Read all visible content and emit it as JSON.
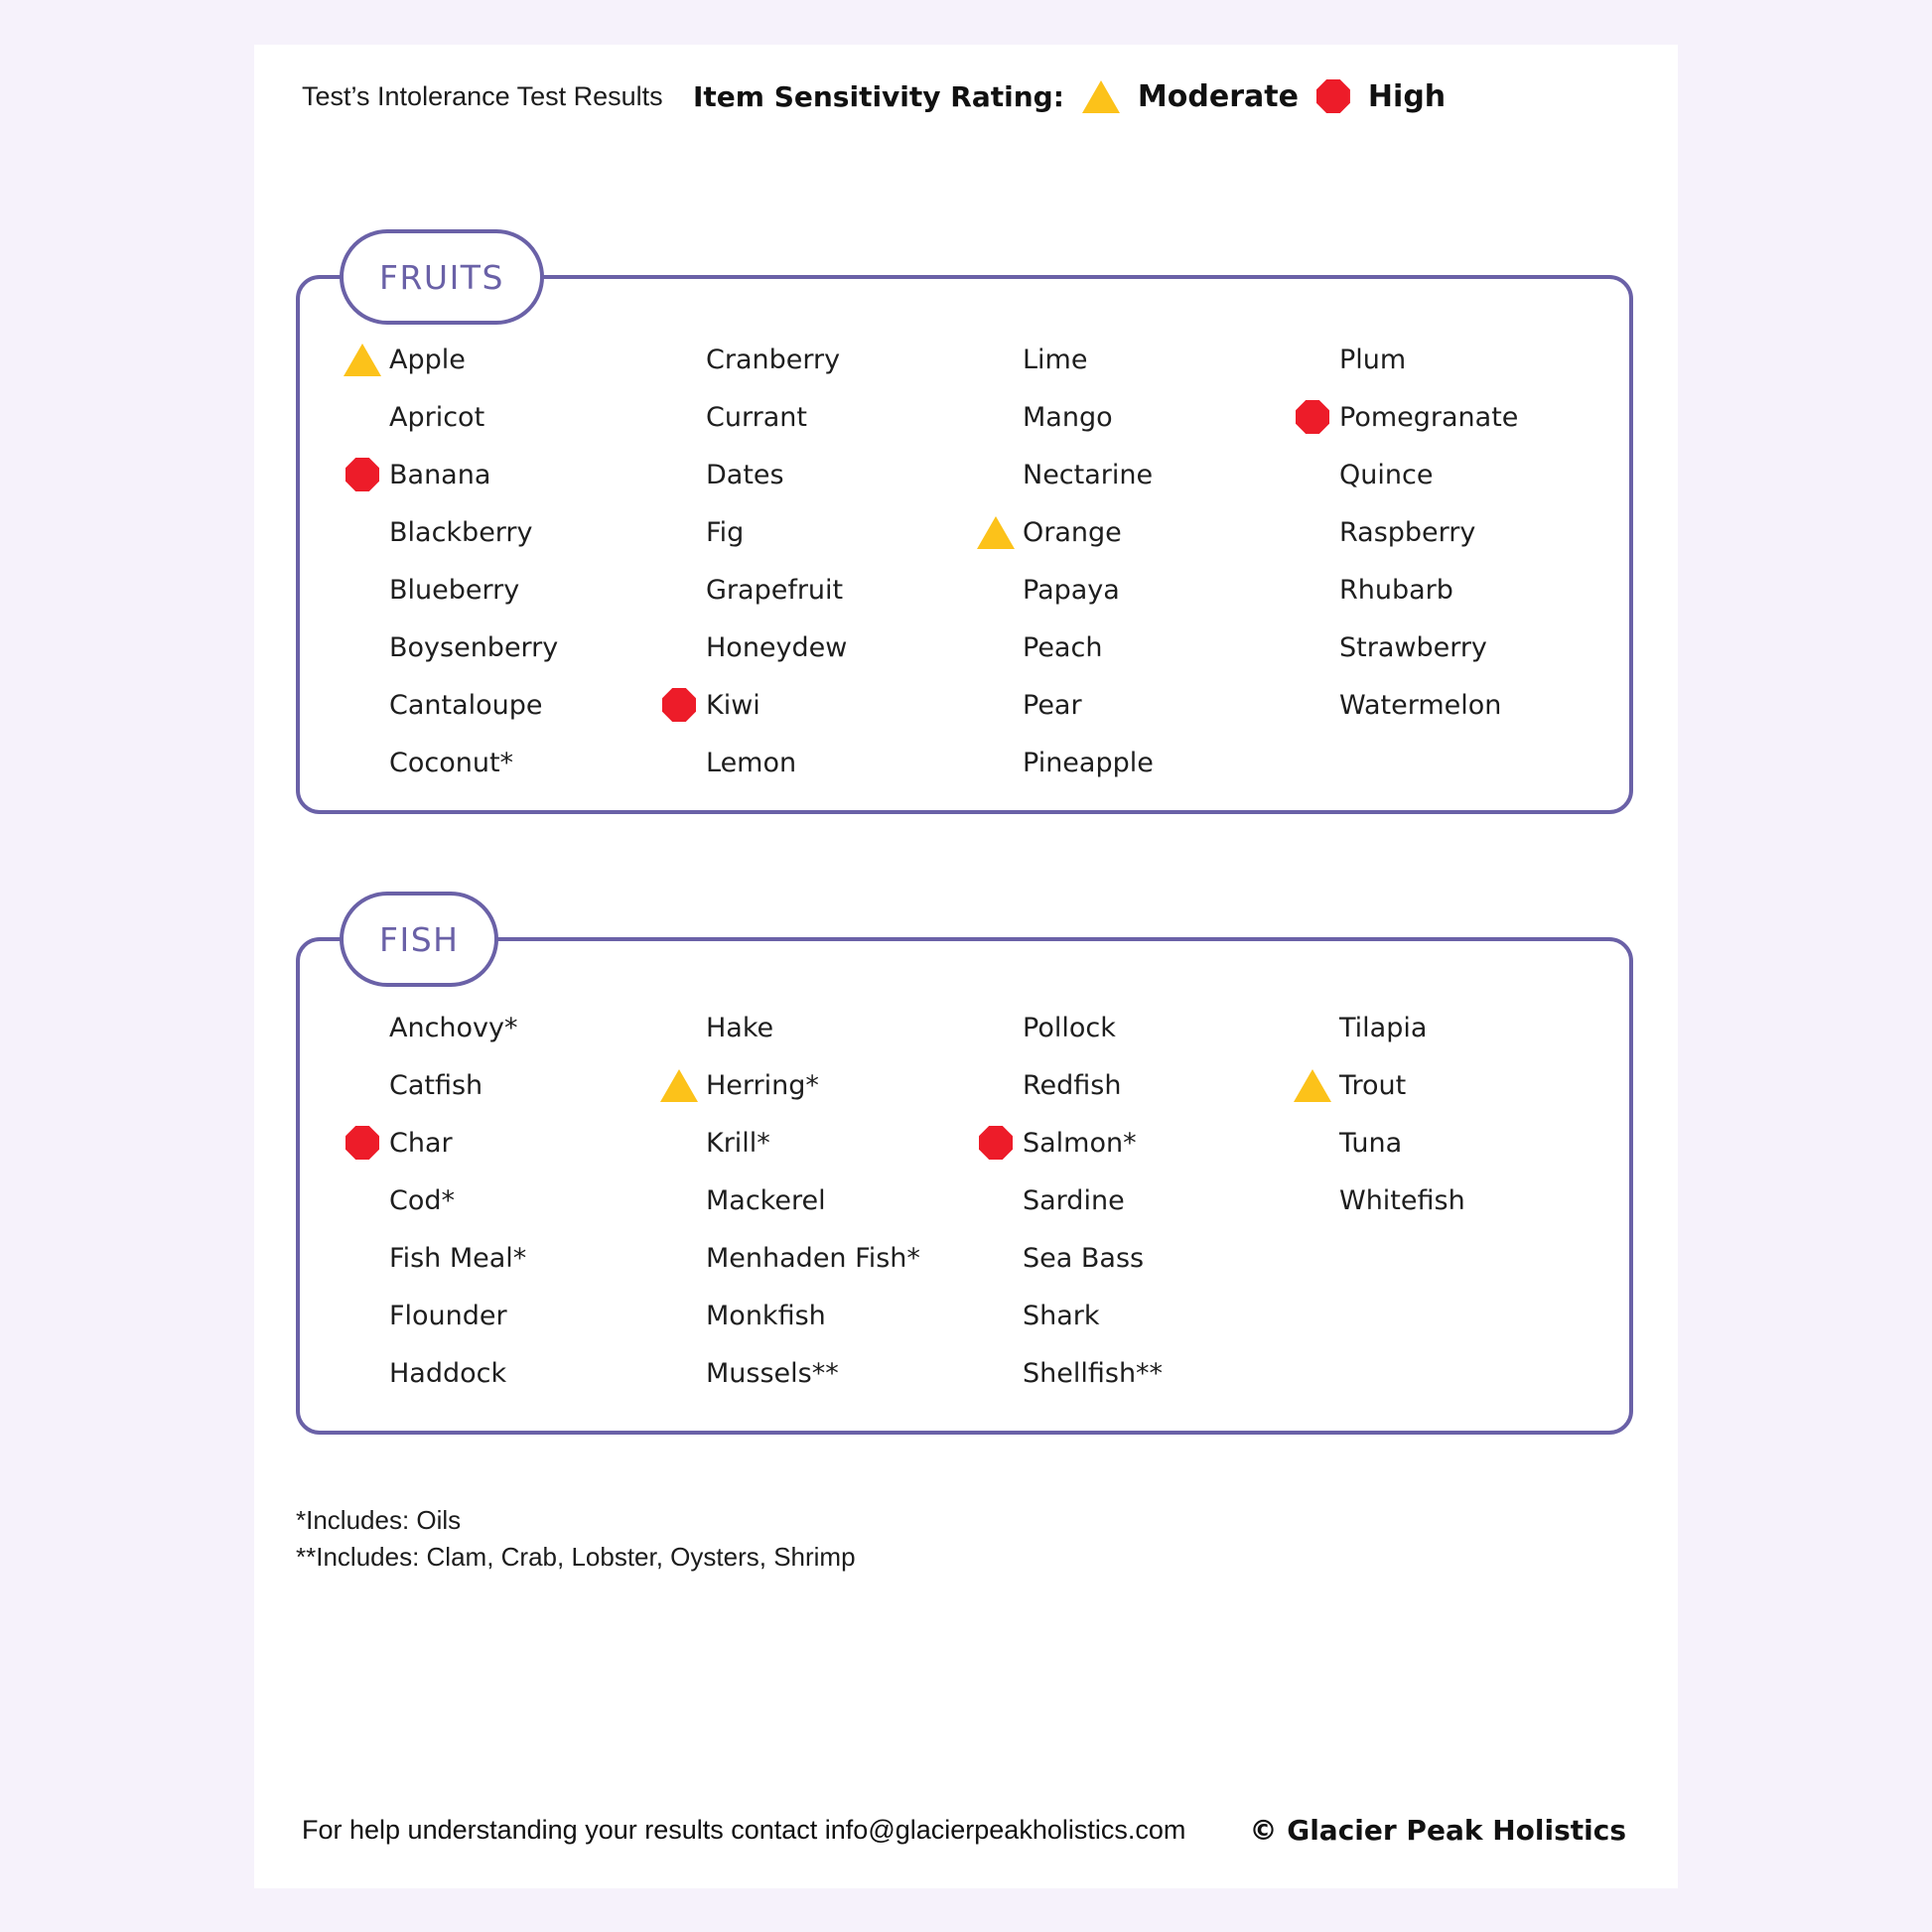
{
  "page": {
    "title": "Test’s Intolerance Test Results",
    "legend": {
      "label": "Item Sensitivity Rating:",
      "moderate_label": "Moderate",
      "high_label": "High"
    },
    "footnotes": [
      "*Includes: Oils",
      "**Includes: Clam, Crab, Lobster, Oysters, Shrimp"
    ],
    "footer": {
      "contact": "For help understanding your results contact info@glacierpeakholistics.com",
      "copyright": "© Glacier Peak Holistics"
    }
  },
  "colors": {
    "accent_purple": "#6a61a7",
    "moderate_yellow": "#fcc21a",
    "high_red": "#ed1c29",
    "canvas_background": "#f6f2fb",
    "page_background": "#ffffff",
    "text": "#1e1e1e"
  },
  "categories": [
    {
      "name": "FRUITS",
      "rows": 8,
      "items": [
        {
          "label": "Apple",
          "rating": "moderate"
        },
        {
          "label": "Apricot",
          "rating": "none"
        },
        {
          "label": "Banana",
          "rating": "high"
        },
        {
          "label": "Blackberry",
          "rating": "none"
        },
        {
          "label": "Blueberry",
          "rating": "none"
        },
        {
          "label": "Boysenberry",
          "rating": "none"
        },
        {
          "label": "Cantaloupe",
          "rating": "none"
        },
        {
          "label": "Coconut*",
          "rating": "none"
        },
        {
          "label": "Cranberry",
          "rating": "none"
        },
        {
          "label": "Currant",
          "rating": "none"
        },
        {
          "label": "Dates",
          "rating": "none"
        },
        {
          "label": "Fig",
          "rating": "none"
        },
        {
          "label": "Grapefruit",
          "rating": "none"
        },
        {
          "label": "Honeydew",
          "rating": "none"
        },
        {
          "label": "Kiwi",
          "rating": "high"
        },
        {
          "label": "Lemon",
          "rating": "none"
        },
        {
          "label": "Lime",
          "rating": "none"
        },
        {
          "label": "Mango",
          "rating": "none"
        },
        {
          "label": "Nectarine",
          "rating": "none"
        },
        {
          "label": "Orange",
          "rating": "moderate"
        },
        {
          "label": "Papaya",
          "rating": "none"
        },
        {
          "label": "Peach",
          "rating": "none"
        },
        {
          "label": "Pear",
          "rating": "none"
        },
        {
          "label": "Pineapple",
          "rating": "none"
        },
        {
          "label": "Plum",
          "rating": "none"
        },
        {
          "label": "Pomegranate",
          "rating": "high"
        },
        {
          "label": "Quince",
          "rating": "none"
        },
        {
          "label": "Raspberry",
          "rating": "none"
        },
        {
          "label": "Rhubarb",
          "rating": "none"
        },
        {
          "label": "Strawberry",
          "rating": "none"
        },
        {
          "label": "Watermelon",
          "rating": "none"
        }
      ]
    },
    {
      "name": "FISH",
      "rows": 7,
      "items": [
        {
          "label": "Anchovy*",
          "rating": "none"
        },
        {
          "label": "Catfish",
          "rating": "none"
        },
        {
          "label": "Char",
          "rating": "high"
        },
        {
          "label": "Cod*",
          "rating": "none"
        },
        {
          "label": "Fish Meal*",
          "rating": "none"
        },
        {
          "label": "Flounder",
          "rating": "none"
        },
        {
          "label": "Haddock",
          "rating": "none"
        },
        {
          "label": "Hake",
          "rating": "none"
        },
        {
          "label": "Herring*",
          "rating": "moderate"
        },
        {
          "label": "Krill*",
          "rating": "none"
        },
        {
          "label": "Mackerel",
          "rating": "none"
        },
        {
          "label": "Menhaden Fish*",
          "rating": "none"
        },
        {
          "label": "Monkfish",
          "rating": "none"
        },
        {
          "label": "Mussels**",
          "rating": "none"
        },
        {
          "label": "Pollock",
          "rating": "none"
        },
        {
          "label": "Redfish",
          "rating": "none"
        },
        {
          "label": "Salmon*",
          "rating": "high"
        },
        {
          "label": "Sardine",
          "rating": "none"
        },
        {
          "label": "Sea Bass",
          "rating": "none"
        },
        {
          "label": "Shark",
          "rating": "none"
        },
        {
          "label": "Shellfish**",
          "rating": "none"
        },
        {
          "label": "Tilapia",
          "rating": "none"
        },
        {
          "label": "Trout",
          "rating": "moderate"
        },
        {
          "label": "Tuna",
          "rating": "none"
        },
        {
          "label": "Whitefish",
          "rating": "none"
        }
      ]
    }
  ]
}
